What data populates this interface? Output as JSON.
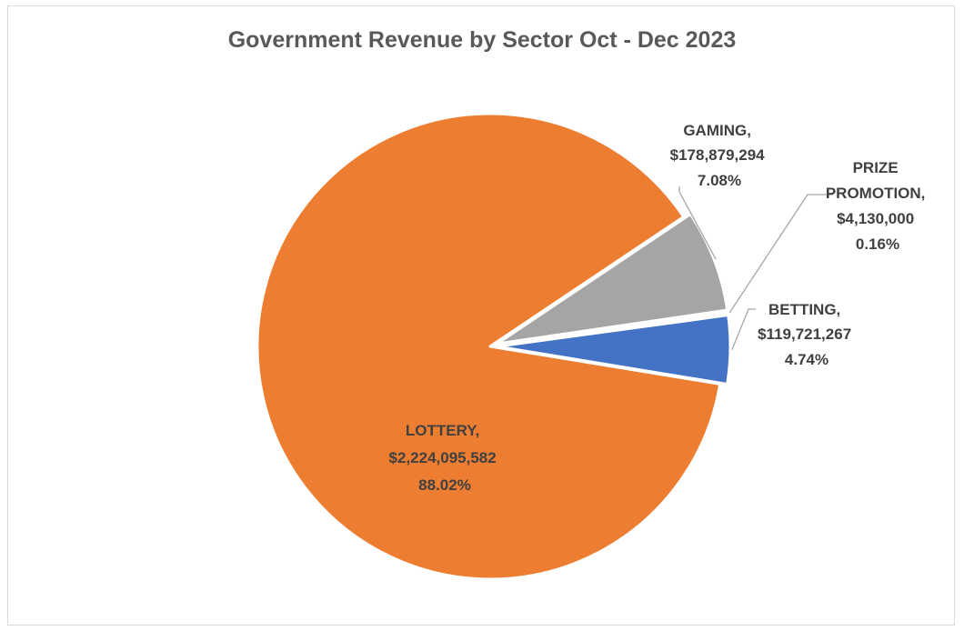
{
  "chart_data": {
    "type": "pie",
    "title": "Government Revenue by Sector Oct - Dec 2023",
    "categories": [
      "BETTING",
      "PRIZE PROMOTION",
      "GAMING",
      "LOTTERY"
    ],
    "values": [
      119721267,
      4130000,
      178879294,
      2224095582
    ],
    "percent_labels": [
      "4.74%",
      "0.16%",
      "7.08%",
      "88.02%"
    ],
    "value_labels": [
      "$119,721,267",
      "$4,130,000",
      "$178,879,294",
      "$2,224,095,582"
    ],
    "name_labels": [
      "BETTING,",
      "PRIZE",
      "GAMING,",
      "LOTTERY,"
    ],
    "name_labels_line2": [
      "",
      "PROMOTION,",
      "",
      ""
    ],
    "colors": [
      "#4472c4",
      "#ed7d31",
      "#a5a5a5",
      "#ed7d31"
    ],
    "legend": "none",
    "grid": false
  }
}
